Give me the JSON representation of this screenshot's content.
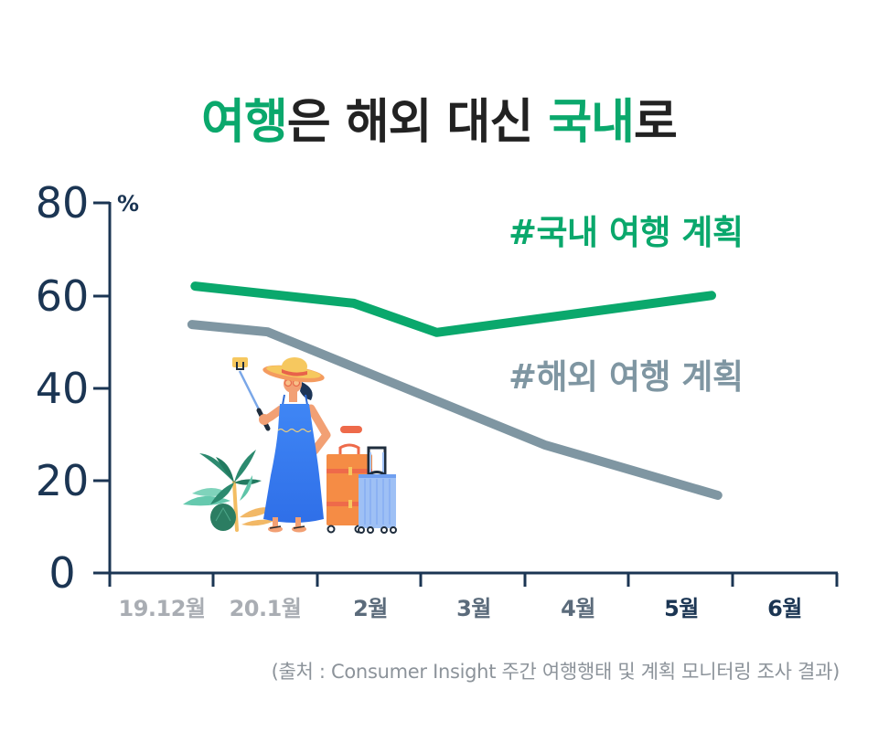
{
  "title": {
    "segments": [
      {
        "text": "여행",
        "accent": true
      },
      {
        "text": "은 해외 대신 ",
        "accent": false
      },
      {
        "text": "국내",
        "accent": true
      },
      {
        "text": "로",
        "accent": false
      }
    ]
  },
  "colors": {
    "accent_green": "#0aa86c",
    "overseas_gray": "#7f96a2",
    "axis_navy": "#1b3553",
    "title_dark": "#222222",
    "past_label_gray": "#a9adb3",
    "mid_label_slate": "#5b6b7b",
    "source_gray": "#8c939a"
  },
  "chart_data": {
    "type": "line",
    "title": "여행은 해외 대신 국내로",
    "xlabel": "",
    "ylabel": "%",
    "categories": [
      "19.12월",
      "20.1월",
      "2월",
      "3월",
      "4월",
      "5월",
      "6월"
    ],
    "yticks": [
      "80",
      "60",
      "40",
      "20",
      "0"
    ],
    "ylim": [
      0,
      80
    ],
    "grid": false,
    "legend_position": "inline-right",
    "series": [
      {
        "name": "#국내 여행 계획",
        "color": "#0aa86c",
        "points": [
          {
            "x": 0.32,
            "y": 62.0
          },
          {
            "x": 1.85,
            "y": 58.3
          },
          {
            "x": 2.65,
            "y": 52.0
          },
          {
            "x": 5.3,
            "y": 60.0
          }
        ]
      },
      {
        "name": "#해외 여행 계획",
        "color": "#7f96a2",
        "points": [
          {
            "x": 0.29,
            "y": 53.7
          },
          {
            "x": 1.02,
            "y": 52.1
          },
          {
            "x": 3.69,
            "y": 27.7
          },
          {
            "x": 5.36,
            "y": 16.8
          }
        ]
      }
    ],
    "source": "(출처 : Consumer Insight 주간 여행행태 및 계획 모니터링 조사 결과)"
  },
  "illustration": {
    "icon": "traveler-with-selfie-stick-and-suitcases"
  }
}
